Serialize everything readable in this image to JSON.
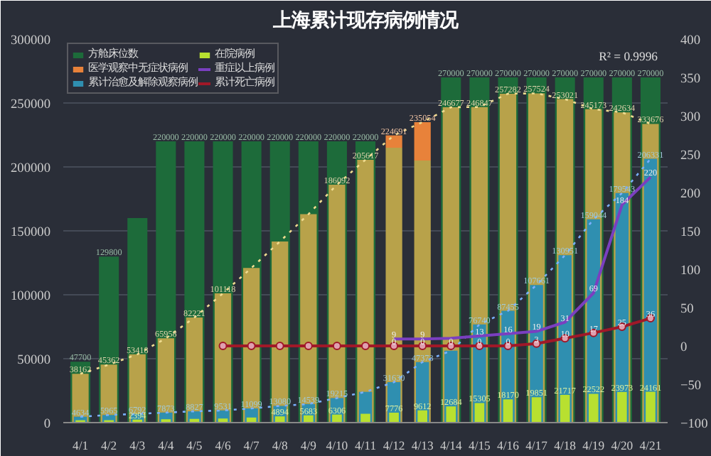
{
  "chart_data": {
    "type": "bar",
    "title": "上海累计现存病例情况",
    "categories": [
      "4/1",
      "4/2",
      "4/3",
      "4/4",
      "4/5",
      "4/6",
      "4/7",
      "4/8",
      "4/9",
      "4/10",
      "4/11",
      "4/12",
      "4/13",
      "4/14",
      "4/15",
      "4/16",
      "4/17",
      "4/18",
      "4/19",
      "4/20",
      "4/21"
    ],
    "ylim": [
      0,
      300000
    ],
    "yticks": [
      0,
      50000,
      100000,
      150000,
      200000,
      250000,
      300000
    ],
    "y2lim": [
      -100,
      400
    ],
    "y2ticks": [
      -100,
      -50,
      0,
      50,
      100,
      150,
      200,
      250,
      300,
      350,
      400
    ],
    "grid": "y",
    "legend": "top left",
    "annotations": [
      "R² = 0.9996"
    ],
    "series": [
      {
        "name": "方舱床位数",
        "color": "#1d6b3a",
        "values": [
          47700,
          129800,
          160000,
          220000,
          220000,
          220000,
          220000,
          220000,
          220000,
          220000,
          220000,
          null,
          null,
          270000,
          270000,
          270000,
          270000,
          270000,
          270000,
          270000,
          270000
        ],
        "value_labels": [
          "47700",
          "129800",
          null,
          "220000",
          "220000",
          "220000",
          "220000",
          "220000",
          "220000",
          "220000",
          "220000",
          null,
          null,
          "270000",
          "270000",
          "270000",
          "270000",
          "270000",
          "270000",
          "270000",
          "270000"
        ]
      },
      {
        "color": "#b8a24a",
        "values": [
          38162,
          45362,
          53418,
          65958,
          82221,
          101118,
          121000,
          141677,
          163000,
          186092,
          205617,
          215000,
          205000,
          246677,
          246847,
          257282,
          257524,
          253021,
          245173,
          242634,
          233676
        ],
        "value_labels": [
          "38162",
          "45362",
          "53418",
          "65958",
          "82221",
          "101118",
          null,
          null,
          null,
          "186092",
          "205617",
          null,
          null,
          "246677",
          "246847",
          "257282",
          "257524",
          "253021",
          "245173",
          "242634",
          "233676"
        ]
      },
      {
        "name": "医学观察中无症状病例",
        "color": "#e8823a",
        "values": [
          null,
          null,
          null,
          null,
          null,
          null,
          null,
          null,
          null,
          null,
          null,
          9691,
          30054,
          null,
          null,
          null,
          null,
          null,
          null,
          null,
          null
        ],
        "base": [
          null,
          null,
          null,
          null,
          null,
          null,
          null,
          null,
          null,
          null,
          null,
          215000,
          205000,
          null,
          null,
          null,
          null,
          null,
          null,
          null,
          null
        ],
        "value_labels": [
          null,
          null,
          null,
          null,
          null,
          null,
          null,
          null,
          null,
          null,
          null,
          "224691",
          "235054",
          null,
          null,
          null,
          null,
          null,
          null,
          null,
          null
        ]
      },
      {
        "name": "累计治愈及解除观察病例",
        "color": "#2f8fb0",
        "values": [
          4634,
          5965,
          6792,
          7873,
          8827,
          9531,
          11099,
          13080,
          14539,
          19215,
          24063,
          31630,
          47373,
          56200,
          76740,
          87455,
          107661,
          130951,
          159044,
          179543,
          206331
        ],
        "value_labels": [
          "4634",
          "5965",
          "6792",
          "7873",
          "8827",
          "9531",
          "11099",
          "13080",
          "14539",
          "19215",
          null,
          "31630",
          "47373",
          null,
          "76740",
          "87455",
          "107661",
          "130951",
          "159044",
          "179543",
          "206331"
        ]
      },
      {
        "name": "在院病例",
        "color": "#b8e030",
        "values": [
          1877,
          1891,
          2394,
          2642,
          2932,
          3212,
          3989,
          4894,
          5683,
          6306,
          6921,
          7776,
          9612,
          12684,
          15305,
          18170,
          19851,
          21717,
          22522,
          23973,
          24161
        ],
        "value_labels": [
          null,
          null,
          "2394",
          null,
          null,
          null,
          null,
          "4894",
          "5683",
          "6306",
          null,
          "7776",
          "9612",
          "12684",
          "15305",
          "18170",
          "19851",
          "21717",
          "22522",
          "23973",
          "24161"
        ]
      },
      {
        "type": "line",
        "color": "#f0dc90",
        "line_style": "dotted",
        "values": [
          38162,
          45362,
          53418,
          65958,
          82221,
          101118,
          121000,
          141677,
          163000,
          186092,
          205617,
          224691,
          235054,
          246677,
          246847,
          257282,
          257524,
          253021,
          245173,
          242634,
          233676
        ]
      },
      {
        "type": "line",
        "color": "#7ab0ff",
        "line_style": "dotted",
        "values": [
          4634,
          5965,
          6792,
          7873,
          8827,
          9531,
          11099,
          13080,
          14539,
          19215,
          24063,
          31630,
          47373,
          56200,
          76740,
          87455,
          107661,
          130951,
          159044,
          179543,
          206331
        ]
      },
      {
        "name": "重症以上病例",
        "type": "line",
        "axis": "y2",
        "color": "#7a3fc0",
        "values": [
          null,
          null,
          null,
          null,
          null,
          null,
          null,
          null,
          null,
          null,
          null,
          9,
          9,
          10,
          13,
          16,
          19,
          31,
          69,
          184,
          220
        ],
        "value_labels": [
          null,
          null,
          null,
          null,
          null,
          null,
          null,
          null,
          null,
          null,
          null,
          "9",
          "9",
          null,
          "13",
          "16",
          "19",
          "31",
          "69",
          "184",
          "220"
        ]
      },
      {
        "name": "累计死亡病例",
        "type": "line",
        "axis": "y2",
        "color": "#a01828",
        "marker": "circle",
        "values": [
          null,
          null,
          null,
          null,
          null,
          0,
          0,
          0,
          0,
          0,
          0,
          0,
          0,
          0,
          0,
          0,
          3,
          10,
          17,
          25,
          36
        ],
        "value_labels": [
          null,
          null,
          null,
          null,
          null,
          null,
          null,
          null,
          null,
          null,
          null,
          "0",
          "0",
          "0",
          "0",
          "0",
          "3",
          "10",
          "17",
          "25",
          "36"
        ]
      }
    ]
  }
}
